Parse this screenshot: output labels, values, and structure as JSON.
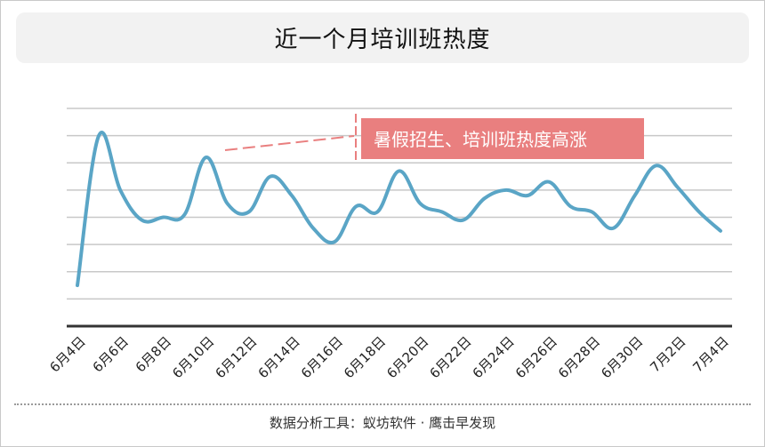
{
  "header": {
    "title": "近一个月培训班热度"
  },
  "footer": {
    "text": "数据分析工具：蚁坊软件 · 鹰击早发现"
  },
  "colors": {
    "line": "#5aa5c6",
    "annotation_bg": "#e97f7f",
    "annotation_text": "#ffffff",
    "grid": "#c8c8c8",
    "axis": "#333333"
  },
  "chart_data": {
    "type": "line",
    "title": "近一个月培训班热度",
    "xlabel": "",
    "ylabel": "",
    "ylim": [
      0,
      8
    ],
    "grid": true,
    "y_tick_labels_shown": false,
    "x_tick_labels": [
      "6月4日",
      "6月6日",
      "6月8日",
      "6月10日",
      "6月12日",
      "6月14日",
      "6月16日",
      "6月18日",
      "6月20日",
      "6月22日",
      "6月24日",
      "6月26日",
      "6月28日",
      "6月30日",
      "7月2日",
      "7月4日"
    ],
    "x": [
      "6月4日",
      "6月5日",
      "6月6日",
      "6月7日",
      "6月8日",
      "6月9日",
      "6月10日",
      "6月11日",
      "6月12日",
      "6月13日",
      "6月14日",
      "6月15日",
      "6月16日",
      "6月17日",
      "6月18日",
      "6月19日",
      "6月20日",
      "6月21日",
      "6月22日",
      "6月23日",
      "6月24日",
      "6月25日",
      "6月26日",
      "6月27日",
      "6月28日",
      "6月29日",
      "6月30日",
      "7月1日",
      "7月2日",
      "7月3日",
      "7月4日"
    ],
    "series": [
      {
        "values": [
          1.5,
          7.0,
          5.0,
          3.9,
          4.0,
          4.1,
          6.2,
          4.5,
          4.2,
          5.5,
          4.8,
          3.6,
          3.1,
          4.4,
          4.2,
          5.7,
          4.5,
          4.2,
          3.9,
          4.7,
          5.0,
          4.8,
          5.3,
          4.4,
          4.2,
          3.6,
          4.8,
          5.9,
          5.1,
          4.2,
          3.5
        ]
      }
    ],
    "annotations": [
      {
        "text": "暑假招生、培训班热度高涨",
        "x": "6月18日",
        "y": 7.2
      }
    ]
  }
}
